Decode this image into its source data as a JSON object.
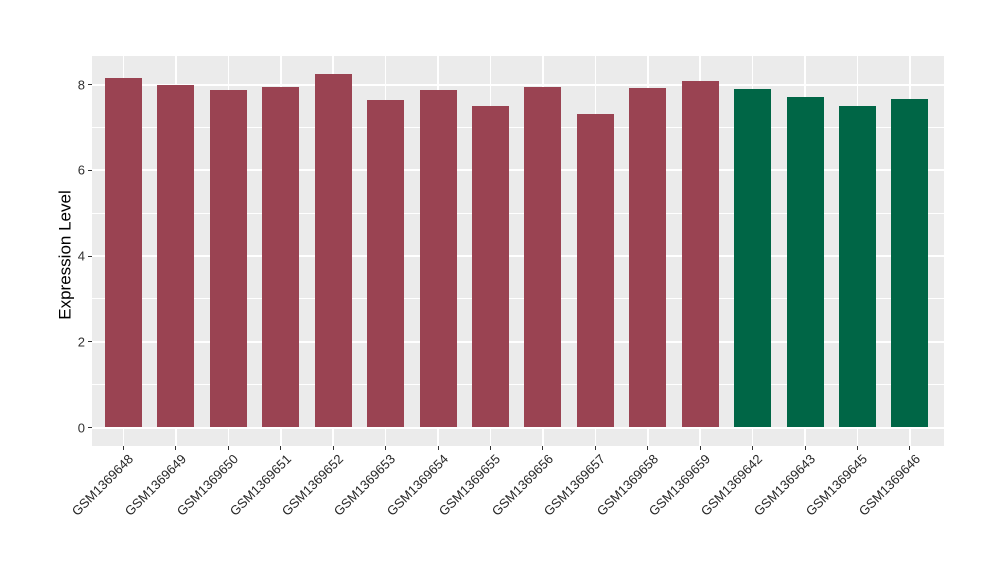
{
  "chart_data": {
    "type": "bar",
    "ylabel": "Expression Level",
    "xlabel": "",
    "ylim": [
      0,
      8.66
    ],
    "yticks": [
      0,
      2,
      4,
      6,
      8
    ],
    "yminor_gridlines": [
      1,
      3,
      5,
      7
    ],
    "grid": "on",
    "legend_position": "none",
    "x_tick_label_angle": 45,
    "colors": {
      "panel_background": "#ebebeb",
      "gridline": "#ffffff",
      "tick_mark": "#333333",
      "axis_text": "#303030",
      "axis_title": "#000000",
      "group_a_bar": "#9a4352",
      "group_b_bar": "#006646"
    },
    "bar_groups": [
      {
        "name": "group-a",
        "color": "#9a4352"
      },
      {
        "name": "group-b",
        "color": "#006646"
      }
    ],
    "points": [
      {
        "label": "GSM1369648",
        "value": 8.15,
        "group": 0
      },
      {
        "label": "GSM1369649",
        "value": 7.99,
        "group": 0
      },
      {
        "label": "GSM1369650",
        "value": 7.88,
        "group": 0
      },
      {
        "label": "GSM1369651",
        "value": 7.94,
        "group": 0
      },
      {
        "label": "GSM1369652",
        "value": 8.24,
        "group": 0
      },
      {
        "label": "GSM1369653",
        "value": 7.63,
        "group": 0
      },
      {
        "label": "GSM1369654",
        "value": 7.87,
        "group": 0
      },
      {
        "label": "GSM1369655",
        "value": 7.49,
        "group": 0
      },
      {
        "label": "GSM1369656",
        "value": 7.94,
        "group": 0
      },
      {
        "label": "GSM1369657",
        "value": 7.31,
        "group": 0
      },
      {
        "label": "GSM1369658",
        "value": 7.91,
        "group": 0
      },
      {
        "label": "GSM1369659",
        "value": 8.08,
        "group": 0
      },
      {
        "label": "GSM1369642",
        "value": 7.89,
        "group": 1
      },
      {
        "label": "GSM1369643",
        "value": 7.7,
        "group": 1
      },
      {
        "label": "GSM1369645",
        "value": 7.51,
        "group": 1
      },
      {
        "label": "GSM1369646",
        "value": 7.66,
        "group": 1
      }
    ]
  }
}
